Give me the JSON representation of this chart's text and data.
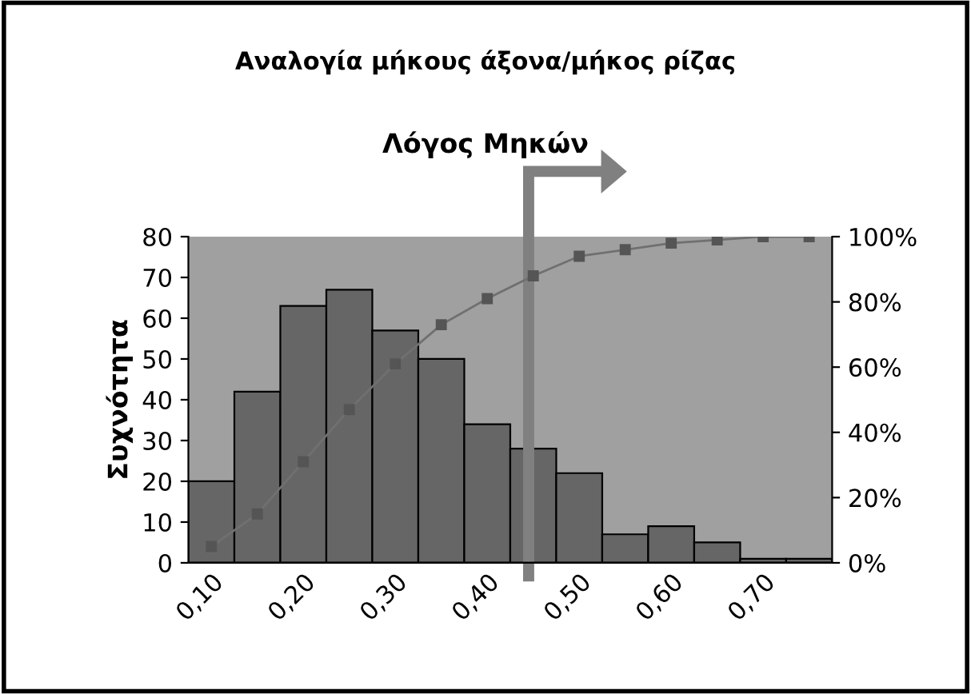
{
  "chart_data": {
    "type": "histogram",
    "title": "Αναλογία μήκους άξονα/μήκος ρίζας",
    "subtitle": "Λόγος Μηκών",
    "ylabel": "Συχνότητα",
    "bins": [
      0.075,
      0.125,
      0.175,
      0.225,
      0.275,
      0.325,
      0.375,
      0.425,
      0.475,
      0.525,
      0.575,
      0.625,
      0.675,
      0.725,
      0.775
    ],
    "values": [
      20,
      42,
      63,
      67,
      57,
      50,
      34,
      28,
      22,
      7,
      9,
      5,
      1,
      1
    ],
    "color": "#666666",
    "series": [
      {
        "type": "line",
        "axis": "y2",
        "color": "#707070",
        "x": [
          0.1,
          0.15,
          0.2,
          0.25,
          0.3,
          0.35,
          0.4,
          0.45,
          0.5,
          0.55,
          0.6,
          0.65,
          0.7,
          0.75
        ],
        "values": [
          5,
          15,
          31,
          47,
          61,
          73,
          81,
          88,
          94,
          96,
          98,
          99,
          100,
          100
        ]
      }
    ],
    "marker": "square",
    "xlim": [
      0.075,
      0.775
    ],
    "xticks": [
      {
        "value": 0.1,
        "label": "0,10"
      },
      {
        "value": 0.2,
        "label": "0,20"
      },
      {
        "value": 0.3,
        "label": "0,30"
      },
      {
        "value": 0.4,
        "label": "0,40"
      },
      {
        "value": 0.5,
        "label": "0,50"
      },
      {
        "value": 0.6,
        "label": "0,60"
      },
      {
        "value": 0.7,
        "label": "0,70"
      }
    ],
    "ylim": [
      0,
      80
    ],
    "yticks": [
      0,
      10,
      20,
      30,
      40,
      50,
      60,
      70,
      80
    ],
    "y2lim": [
      0,
      100
    ],
    "y2ticks": [
      {
        "value": 0,
        "label": "0%"
      },
      {
        "value": 20,
        "label": "20%"
      },
      {
        "value": 40,
        "label": "40%"
      },
      {
        "value": 60,
        "label": "60%"
      },
      {
        "value": 80,
        "label": "80%"
      },
      {
        "value": 100,
        "label": "100%"
      }
    ],
    "ref_lines": [
      {
        "axis": "x",
        "value": 0.445,
        "color": "#808080"
      }
    ],
    "grid": false
  }
}
